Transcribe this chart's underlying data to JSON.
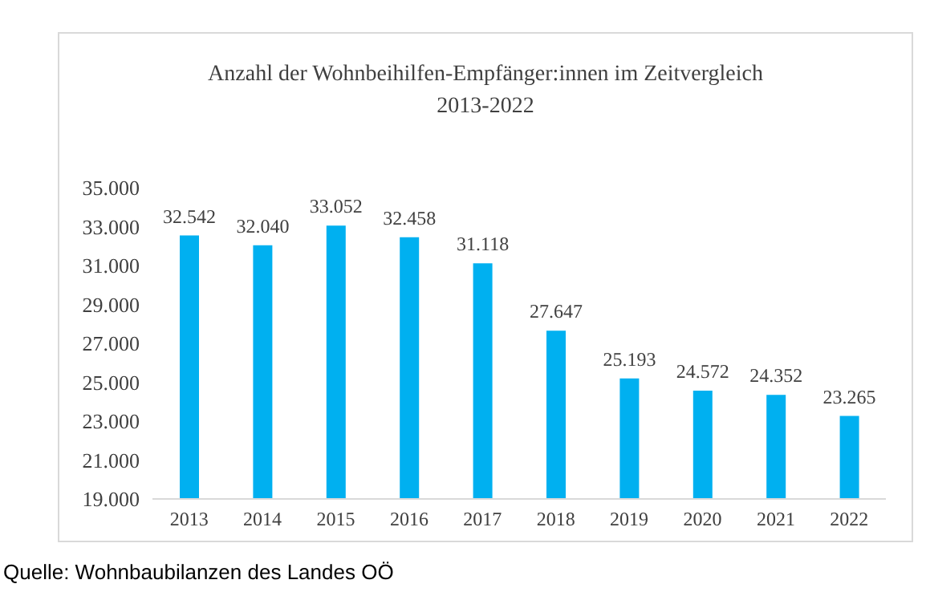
{
  "chart_data": {
    "type": "bar",
    "title": "Anzahl der Wohnbeihilfen-Empfänger:innen im Zeitvergleich\n2013-2022",
    "categories": [
      "2013",
      "2014",
      "2015",
      "2016",
      "2017",
      "2018",
      "2019",
      "2020",
      "2021",
      "2022"
    ],
    "values": [
      32542,
      32040,
      33052,
      32458,
      31118,
      27647,
      25193,
      24572,
      24352,
      23265
    ],
    "value_labels": [
      "32.542",
      "32.040",
      "33.052",
      "32.458",
      "31.118",
      "27.647",
      "25.193",
      "24.572",
      "24.352",
      "23.265"
    ],
    "color": "#00b0f0",
    "ylim": [
      19000,
      35000
    ],
    "yticks": [
      {
        "value": 19000,
        "label": "19.000"
      },
      {
        "value": 21000,
        "label": "21.000"
      },
      {
        "value": 23000,
        "label": "23.000"
      },
      {
        "value": 25000,
        "label": "25.000"
      },
      {
        "value": 27000,
        "label": "27.000"
      },
      {
        "value": 29000,
        "label": "29.000"
      },
      {
        "value": 31000,
        "label": "31.000"
      },
      {
        "value": 33000,
        "label": "33.000"
      },
      {
        "value": 35000,
        "label": "35.000"
      }
    ],
    "grid": false,
    "annotations": [
      "Quelle: Wohnbaubilanzen des Landes OÖ"
    ]
  }
}
